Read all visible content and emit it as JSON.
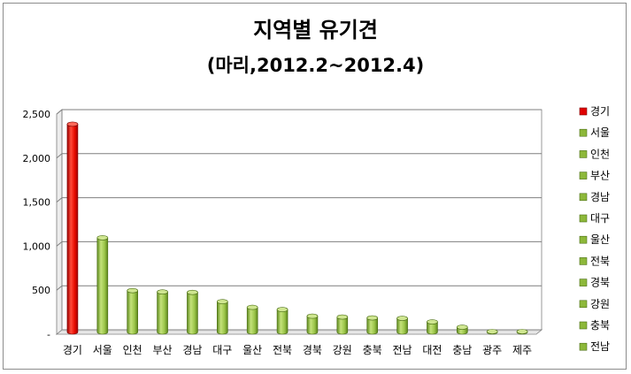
{
  "chart_data": {
    "type": "bar",
    "title": "지역별 유기견",
    "subtitle": "(마리,2012.2~2012.4)",
    "xlabel": "",
    "ylabel": "",
    "ylim": [
      0,
      2500
    ],
    "yticks": [
      "2,500",
      "2,000",
      "1,500",
      "1,000",
      "500",
      "-"
    ],
    "ytick_values": [
      2500,
      2000,
      1500,
      1000,
      500,
      0
    ],
    "grid": true,
    "legend_position": "right",
    "categories": [
      "경기",
      "서울",
      "인천",
      "부산",
      "경남",
      "대구",
      "울산",
      "전북",
      "경북",
      "강원",
      "충북",
      "전남",
      "대전",
      "충남",
      "광주",
      "제주"
    ],
    "values": [
      2360,
      1070,
      470,
      455,
      450,
      345,
      280,
      255,
      180,
      170,
      160,
      155,
      115,
      55,
      5,
      5
    ],
    "legend": [
      "경기",
      "서울",
      "인천",
      "부산",
      "경남",
      "대구",
      "울산",
      "전북",
      "경북",
      "강원",
      "충북",
      "전남"
    ],
    "colors": {
      "highlight": "#e00000",
      "default": "#8db83a",
      "grid": "#7f7f7f"
    }
  }
}
